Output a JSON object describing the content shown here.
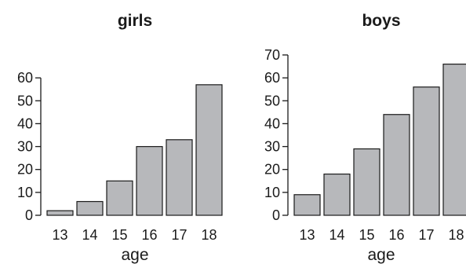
{
  "colors": {
    "bar_fill": "#b7b8bb",
    "bar_stroke": "#1a1a1a",
    "text": "#1a1a1a",
    "background": "#ffffff"
  },
  "chart_data": [
    {
      "type": "bar",
      "title": "girls",
      "xlabel": "age",
      "ylabel": "",
      "categories": [
        "13",
        "14",
        "15",
        "16",
        "17",
        "18"
      ],
      "values": [
        2,
        6,
        15,
        30,
        33,
        57
      ],
      "ylim": [
        0,
        60
      ],
      "yticks": [
        "0",
        "10",
        "20",
        "30",
        "40",
        "50",
        "60"
      ],
      "grid": false,
      "legend": "none"
    },
    {
      "type": "bar",
      "title": "boys",
      "xlabel": "age",
      "ylabel": "",
      "categories": [
        "13",
        "14",
        "15",
        "16",
        "17",
        "18"
      ],
      "values": [
        9,
        18,
        29,
        44,
        56,
        66
      ],
      "ylim": [
        0,
        70
      ],
      "yticks": [
        "0",
        "10",
        "20",
        "30",
        "40",
        "50",
        "60",
        "70"
      ],
      "grid": false,
      "legend": "none"
    }
  ]
}
